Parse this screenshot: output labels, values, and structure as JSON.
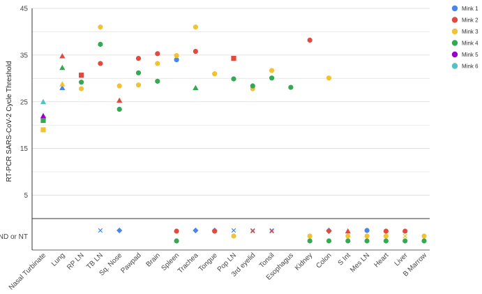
{
  "chart_data": {
    "type": "scatter",
    "ylabel": "RT-PCR SARS-CoV-2 Cycle Threshold",
    "y_ticks": [
      "45",
      "35",
      "25",
      "15",
      "5",
      "ND or NT"
    ],
    "ylim": [
      0,
      45
    ],
    "categories": [
      "Nasal Turbinate",
      "Lung",
      "RP LN",
      "TB LN",
      "Sq. Nose",
      "Pawpad",
      "Brain",
      "Spleen",
      "Trachea",
      "Tongue",
      "Pop LN",
      "3rd eyelid",
      "Tonsil",
      "Esophagus",
      "Kidney",
      "Colon",
      "S Int",
      "Mes LN",
      "Heart",
      "Liver",
      "B Marrow"
    ],
    "legend_placement": "top-right",
    "series": [
      {
        "name": "Mink 1",
        "color": "#4a86e8",
        "points": [
          {
            "x": "Nasal Turbinate",
            "y": null
          },
          {
            "x": "Lung",
            "y": 28,
            "shape": "triangle"
          },
          {
            "x": "TB LN",
            "y": "ND or NT",
            "shape": "cross"
          },
          {
            "x": "Sq. Nose",
            "y": "ND or NT",
            "shape": "diamond"
          },
          {
            "x": "Spleen",
            "y": 34,
            "shape": "circle"
          },
          {
            "x": "Trachea",
            "y": "ND or NT",
            "shape": "diamond"
          },
          {
            "x": "Tongue",
            "y": "ND or NT",
            "shape": "diamond"
          },
          {
            "x": "Pop LN",
            "y": "ND or NT",
            "shape": "cross"
          },
          {
            "x": "3rd eyelid",
            "y": "ND or NT",
            "shape": "cross"
          },
          {
            "x": "Tonsil",
            "y": "ND or NT",
            "shape": "cross"
          },
          {
            "x": "Colon",
            "y": "ND or NT",
            "shape": "diamond"
          },
          {
            "x": "Mes LN",
            "y": "ND or NT",
            "shape": "circle"
          }
        ]
      },
      {
        "name": "Mink 2",
        "color": "#e04a3f",
        "points": [
          {
            "x": "Lung",
            "y": 34.8,
            "shape": "triangle"
          },
          {
            "x": "RP LN",
            "y": 30.7,
            "shape": "square"
          },
          {
            "x": "TB LN",
            "y": 33.2,
            "shape": "circle"
          },
          {
            "x": "Sq. Nose",
            "y": 25.3,
            "shape": "triangle"
          },
          {
            "x": "Pawpad",
            "y": 34.3,
            "shape": "circle"
          },
          {
            "x": "Brain",
            "y": 35.3,
            "shape": "circle"
          },
          {
            "x": "Spleen",
            "y": "ND or NT",
            "shape": "circle"
          },
          {
            "x": "Trachea",
            "y": 35.8,
            "shape": "circle"
          },
          {
            "x": "Tongue",
            "y": "ND or NT",
            "shape": "circle"
          },
          {
            "x": "Pop LN",
            "y": 34.3,
            "shape": "square"
          },
          {
            "x": "3rd eyelid",
            "y": "ND or NT",
            "shape": "cross"
          },
          {
            "x": "Tonsil",
            "y": "ND or NT",
            "shape": "cross"
          },
          {
            "x": "Kidney",
            "y": 38.2,
            "shape": "circle"
          },
          {
            "x": "Colon",
            "y": "ND or NT",
            "shape": "diamond"
          },
          {
            "x": "S Int",
            "y": "ND or NT",
            "shape": "triangle"
          },
          {
            "x": "Heart",
            "y": "ND or NT",
            "shape": "circle"
          },
          {
            "x": "Liver",
            "y": "ND or NT",
            "shape": "circle"
          }
        ]
      },
      {
        "name": "Mink 3",
        "color": "#f1c232",
        "points": [
          {
            "x": "Nasal Turbinate",
            "y": 19,
            "shape": "square"
          },
          {
            "x": "Lung",
            "y": 28.8,
            "shape": "triangle"
          },
          {
            "x": "RP LN",
            "y": 27.8,
            "shape": "circle"
          },
          {
            "x": "TB LN",
            "y": 41,
            "shape": "circle"
          },
          {
            "x": "Sq. Nose",
            "y": 28.4,
            "shape": "circle"
          },
          {
            "x": "Pawpad",
            "y": 28.6,
            "shape": "circle"
          },
          {
            "x": "Brain",
            "y": 33.2,
            "shape": "circle"
          },
          {
            "x": "Spleen",
            "y": 34.9,
            "shape": "circle"
          },
          {
            "x": "Trachea",
            "y": 41,
            "shape": "circle"
          },
          {
            "x": "Tongue",
            "y": 31,
            "shape": "circle"
          },
          {
            "x": "Pop LN",
            "y": "ND or NT",
            "shape": "circle"
          },
          {
            "x": "3rd eyelid",
            "y": 27.8,
            "shape": "circle"
          },
          {
            "x": "Tonsil",
            "y": 31.7,
            "shape": "circle"
          },
          {
            "x": "Kidney",
            "y": "ND or NT",
            "shape": "circle"
          },
          {
            "x": "Colon",
            "y": 30.1,
            "shape": "circle"
          },
          {
            "x": "S Int",
            "y": "ND or NT",
            "shape": "circle"
          },
          {
            "x": "Mes LN",
            "y": "ND or NT",
            "shape": "circle"
          },
          {
            "x": "Heart",
            "y": "ND or NT",
            "shape": "circle"
          },
          {
            "x": "Liver",
            "y": "ND or NT",
            "shape": "cross"
          },
          {
            "x": "B Marrow",
            "y": "ND or NT",
            "shape": "circle"
          }
        ]
      },
      {
        "name": "Mink 4",
        "color": "#34a853",
        "points": [
          {
            "x": "Nasal Turbinate",
            "y": 21,
            "shape": "square"
          },
          {
            "x": "Lung",
            "y": 32.3,
            "shape": "triangle"
          },
          {
            "x": "RP LN",
            "y": 29.2,
            "shape": "circle"
          },
          {
            "x": "TB LN",
            "y": 37.3,
            "shape": "circle"
          },
          {
            "x": "Sq. Nose",
            "y": 23.4,
            "shape": "circle"
          },
          {
            "x": "Pawpad",
            "y": 31.2,
            "shape": "circle"
          },
          {
            "x": "Brain",
            "y": 29.4,
            "shape": "circle"
          },
          {
            "x": "Spleen",
            "y": "ND or NT",
            "shape": "circle"
          },
          {
            "x": "Trachea",
            "y": 28,
            "shape": "triangle"
          },
          {
            "x": "Pop LN",
            "y": 29.9,
            "shape": "circle"
          },
          {
            "x": "3rd eyelid",
            "y": 28.4,
            "shape": "circle"
          },
          {
            "x": "Tonsil",
            "y": 30.1,
            "shape": "circle"
          },
          {
            "x": "Esophagus",
            "y": 28.1,
            "shape": "circle"
          },
          {
            "x": "Kidney",
            "y": "ND or NT",
            "shape": "circle"
          },
          {
            "x": "Colon",
            "y": "ND or NT",
            "shape": "circle"
          },
          {
            "x": "S Int",
            "y": "ND or NT",
            "shape": "circle"
          },
          {
            "x": "Mes LN",
            "y": "ND or NT",
            "shape": "circle"
          },
          {
            "x": "Heart",
            "y": "ND or NT",
            "shape": "circle"
          },
          {
            "x": "Liver",
            "y": "ND or NT",
            "shape": "circle"
          },
          {
            "x": "B Marrow",
            "y": "ND or NT",
            "shape": "circle"
          }
        ]
      },
      {
        "name": "Mink 5",
        "color": "#9900cc",
        "points": [
          {
            "x": "Nasal Turbinate",
            "y": 22,
            "shape": "triangle"
          }
        ]
      },
      {
        "name": "Mink 6",
        "color": "#4fc3c7",
        "points": [
          {
            "x": "Nasal Turbinate",
            "y": 25,
            "shape": "triangle"
          }
        ]
      }
    ]
  }
}
